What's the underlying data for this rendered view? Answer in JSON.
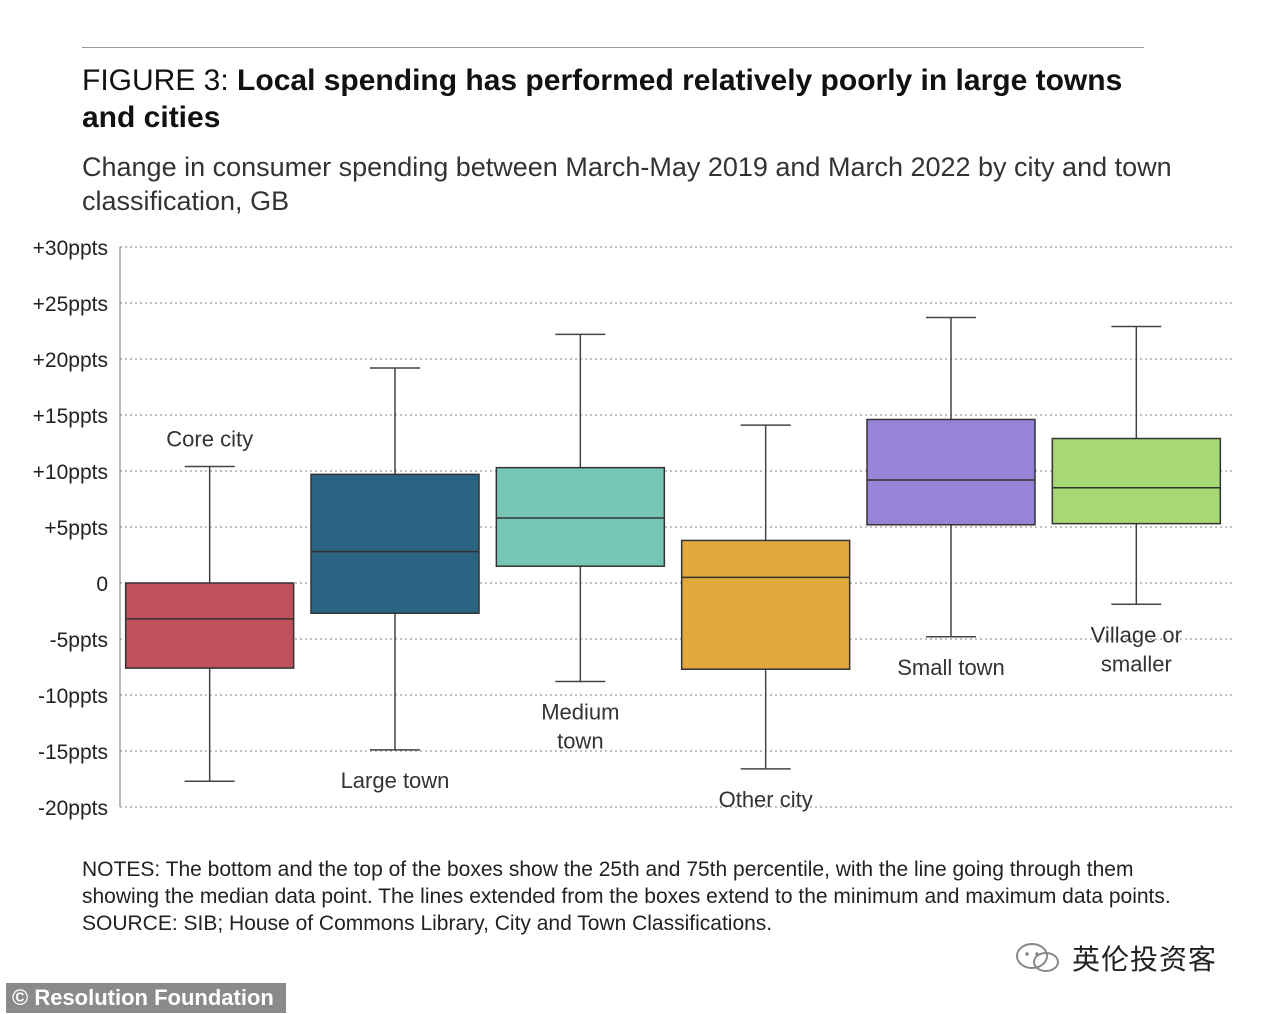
{
  "header": {
    "figure_label": "FIGURE 3:",
    "title": "Local spending has performed relatively poorly in large towns and cities",
    "subtitle": "Change in consumer spending between March-May 2019 and March 2022 by city and town classification, GB"
  },
  "chart_data": {
    "type": "box",
    "title": "Local spending has performed relatively poorly in large towns and cities",
    "ylabel": "",
    "ylim": [
      -20,
      30
    ],
    "yticks": [
      {
        "value": 30,
        "label": "+30ppts"
      },
      {
        "value": 25,
        "label": "+25ppts"
      },
      {
        "value": 20,
        "label": "+20ppts"
      },
      {
        "value": 15,
        "label": "+15ppts"
      },
      {
        "value": 10,
        "label": "+10ppts"
      },
      {
        "value": 5,
        "label": "+5ppts"
      },
      {
        "value": 0,
        "label": "0"
      },
      {
        "value": -5,
        "label": "-5ppts"
      },
      {
        "value": -10,
        "label": "-10ppts"
      },
      {
        "value": -15,
        "label": "-15ppts"
      },
      {
        "value": -20,
        "label": "-20ppts"
      }
    ],
    "grid": true,
    "series": [
      {
        "name": "Core city",
        "label_lines": [
          "Core city"
        ],
        "label_pos": "above",
        "color": "#c0505a",
        "min": -17.7,
        "q1": -7.6,
        "median": -3.2,
        "q3": 0.0,
        "max": 10.4
      },
      {
        "name": "Large town",
        "label_lines": [
          "Large town"
        ],
        "label_pos": "below",
        "color": "#2b6482",
        "min": -14.9,
        "q1": -2.7,
        "median": 2.8,
        "q3": 9.7,
        "max": 19.2
      },
      {
        "name": "Medium town",
        "label_lines": [
          "Medium",
          "town"
        ],
        "label_pos": "below",
        "color": "#76c6b6",
        "min": -8.8,
        "q1": 1.5,
        "median": 5.8,
        "q3": 10.3,
        "max": 22.2
      },
      {
        "name": "Other city",
        "label_lines": [
          "Other city"
        ],
        "label_pos": "below",
        "color": "#e1a83d",
        "min": -16.6,
        "q1": -7.7,
        "median": 0.5,
        "q3": 3.8,
        "max": 14.1
      },
      {
        "name": "Small town",
        "label_lines": [
          "Small town"
        ],
        "label_pos": "below",
        "color": "#9783d7",
        "min": -4.8,
        "q1": 5.2,
        "median": 9.2,
        "q3": 14.6,
        "max": 23.7
      },
      {
        "name": "Village or smaller",
        "label_lines": [
          "Village or",
          "smaller"
        ],
        "label_pos": "below",
        "color": "#a6d875",
        "min": -1.9,
        "q1": 5.3,
        "median": 8.5,
        "q3": 12.9,
        "max": 22.9
      }
    ]
  },
  "notes": {
    "notes_text": "NOTES: The bottom and the top of the boxes show the 25th and 75th percentile, with the line going through them showing the median data point. The lines extended from the boxes extend to the minimum and maximum data points.",
    "source_text": "SOURCE: SIB; House of Commons Library, City and Town Classifications."
  },
  "footer": {
    "brand": "© Resolution Foundation",
    "watermark": "英伦投资客",
    "watermark_icon": "wechat-icon"
  }
}
